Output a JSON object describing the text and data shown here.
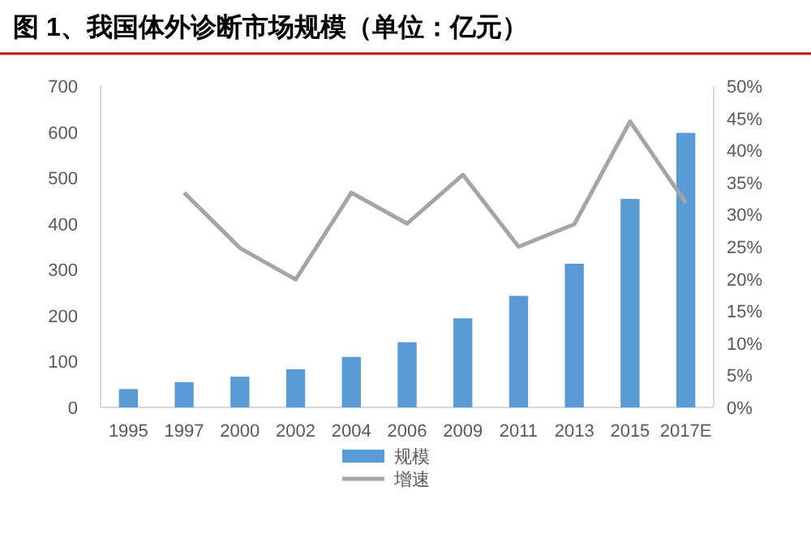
{
  "chart_data": {
    "type": "bar",
    "title": "图 1、我国体外诊断市场规模（单位：亿元）",
    "categories": [
      "1995",
      "1997",
      "2000",
      "2002",
      "2004",
      "2006",
      "2009",
      "2011",
      "2013",
      "2015",
      "2017E"
    ],
    "series": [
      {
        "name": "规模",
        "color": "#5b9bd5",
        "values": [
          40,
          55,
          67,
          83,
          110,
          142,
          194,
          243,
          313,
          454,
          598
        ]
      },
      {
        "name": "增速",
        "type": "line",
        "axis": "y2",
        "color": "#a5a5a5",
        "values": [
          null,
          33.4,
          24.8,
          19.9,
          33.4,
          28.6,
          36.2,
          25.0,
          28.5,
          44.5,
          31.8
        ]
      }
    ],
    "ylim": [
      0,
      700
    ],
    "yticks": [
      0,
      100,
      200,
      300,
      400,
      500,
      600,
      700
    ],
    "y2lim": [
      0,
      50
    ],
    "y2ticks": [
      {
        "value": 0,
        "label": "0%"
      },
      {
        "value": 5,
        "label": "5%"
      },
      {
        "value": 10,
        "label": "10%"
      },
      {
        "value": 15,
        "label": "15%"
      },
      {
        "value": 20,
        "label": "20%"
      },
      {
        "value": 25,
        "label": "25%"
      },
      {
        "value": 30,
        "label": "30%"
      },
      {
        "value": 35,
        "label": "35%"
      },
      {
        "value": 40,
        "label": "40%"
      },
      {
        "value": 45,
        "label": "45%"
      },
      {
        "value": 50,
        "label": "50%"
      }
    ],
    "grid": false,
    "legend": "bottom"
  }
}
